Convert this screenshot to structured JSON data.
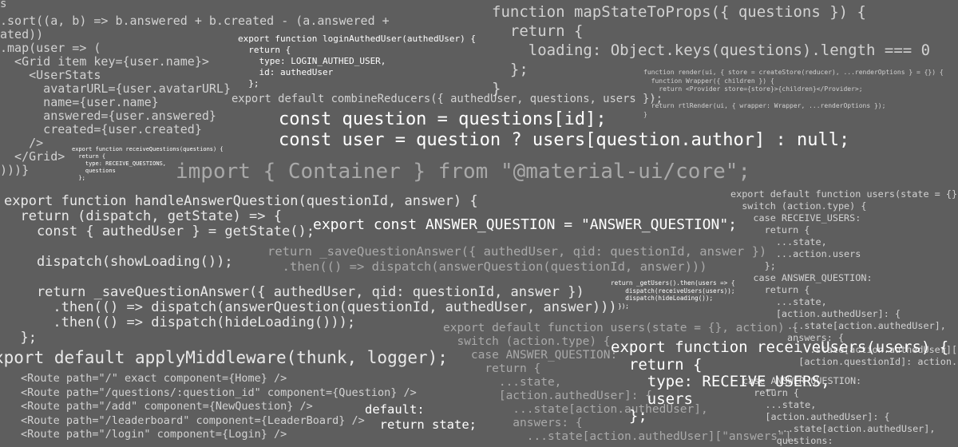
{
  "snippets": {
    "sort_map": ".sort((a, b) => b.answered + b.created - (a.answered +\nated))\n.map(user => (\n  <Grid item key={user.name}>\n    <UserStats\n      avatarURL={user.avatarURL}\n      name={user.name}\n      answered={user.answered}\n      created={user.created}\n    />\n  </Grid>\n)))}",
    "map_state": "function mapStateToProps({ questions }) {\n  return {\n    loading: Object.keys(questions).length === 0\n  };\n}",
    "login_action": "export function loginAuthedUser(authedUser) {\n  return {\n    type: LOGIN_AUTHED_USER,\n    id: authedUser\n  };",
    "combine": "export default combineReducers({ authedUser, questions, users });",
    "render_util": "function render(ui, { store = createStore(reducer), ...renderOptions } = {}) {\n  function Wrapper({ children }) {\n    return <Provider store={store}>{children}</Provider>;\n  }\n  return rtlRender(ui, { wrapper: Wrapper, ...renderOptions });\n}",
    "question_lookup": "const question = questions[id];\nconst user = question ? users[question.author] : null;",
    "receive_questions": "export function receiveQuestions(questions) {\n  return {\n    type: RECEIVE_QUESTIONS,\n    questions\n  };",
    "import_container": "import { Container } from \"@material-ui/core\";",
    "users_reducer": "export default function users(state = {},\n  switch (action.type) {\n    case RECEIVE_USERS:\n      return {\n        ...state,\n        ...action.users\n      };\n    case ANSWER_QUESTION:\n      return {\n        ...state,\n        [action.authedUser]: {\n          ...state[action.authedUser],\n          answers: {\n            ...state[action.authedUser][\"\n            [action.questionId]: action.a",
    "handle_answer": "export function handleAnswerQuestion(questionId, answer) {\n  return (dispatch, getState) => {\n    const { authedUser } = getState();\n\n    dispatch(showLoading());\n\n    return _saveQuestionAnswer({ authedUser, qid: questionId, answer })\n      .then(() => dispatch(answerQuestion(questionId, authedUser, answer)))\n      .then(() => dispatch(hideLoading()));\n  };",
    "answer_const": "export const ANSWER_QUESTION = \"ANSWER_QUESTION\";",
    "save_answer": "return _saveQuestionAnswer({ authedUser, qid: questionId, answer })\n  .then(() => dispatch(answerQuestion(questionId, answer)))",
    "get_users": "return _getUsers().then(users => {\n    dispatch(receiveUsers(users));\n    dispatch(hideLoading());\n  });",
    "users_reducer2": "export default function users(state = {}, action) {\n  switch (action.type) {\n    case ANSWER_QUESTION:\n      return {\n        ...state,\n        [action.authedUser]: {\n          ...state[action.authedUser],\n          answers: {\n            ...state[action.authedUser][\"answers\"],",
    "receive_users": "export function receiveUsers(users) {\n  return {\n    type: RECEIVE_USERS,\n    users\n  };",
    "answer_case": "case ANSWER_QUESTION:\n  return {\n    ...state,\n    [action.authedUser]: {\n      ...state[action.authedUser],\n      questions:",
    "middleware": "xport default applyMiddleware(thunk, logger);",
    "routes": "<Route path=\"/\" exact component={Home} />\n<Route path=\"/questions/:question_id\" component={Question} />\n<Route path=\"/add\" component={NewQuestion} />\n<Route path=\"/leaderboard\" component={LeaderBoard} />\n<Route path=\"/login\" component={Login} />",
    "default_case": "default:\n  return state;",
    "corner_s": "s"
  }
}
